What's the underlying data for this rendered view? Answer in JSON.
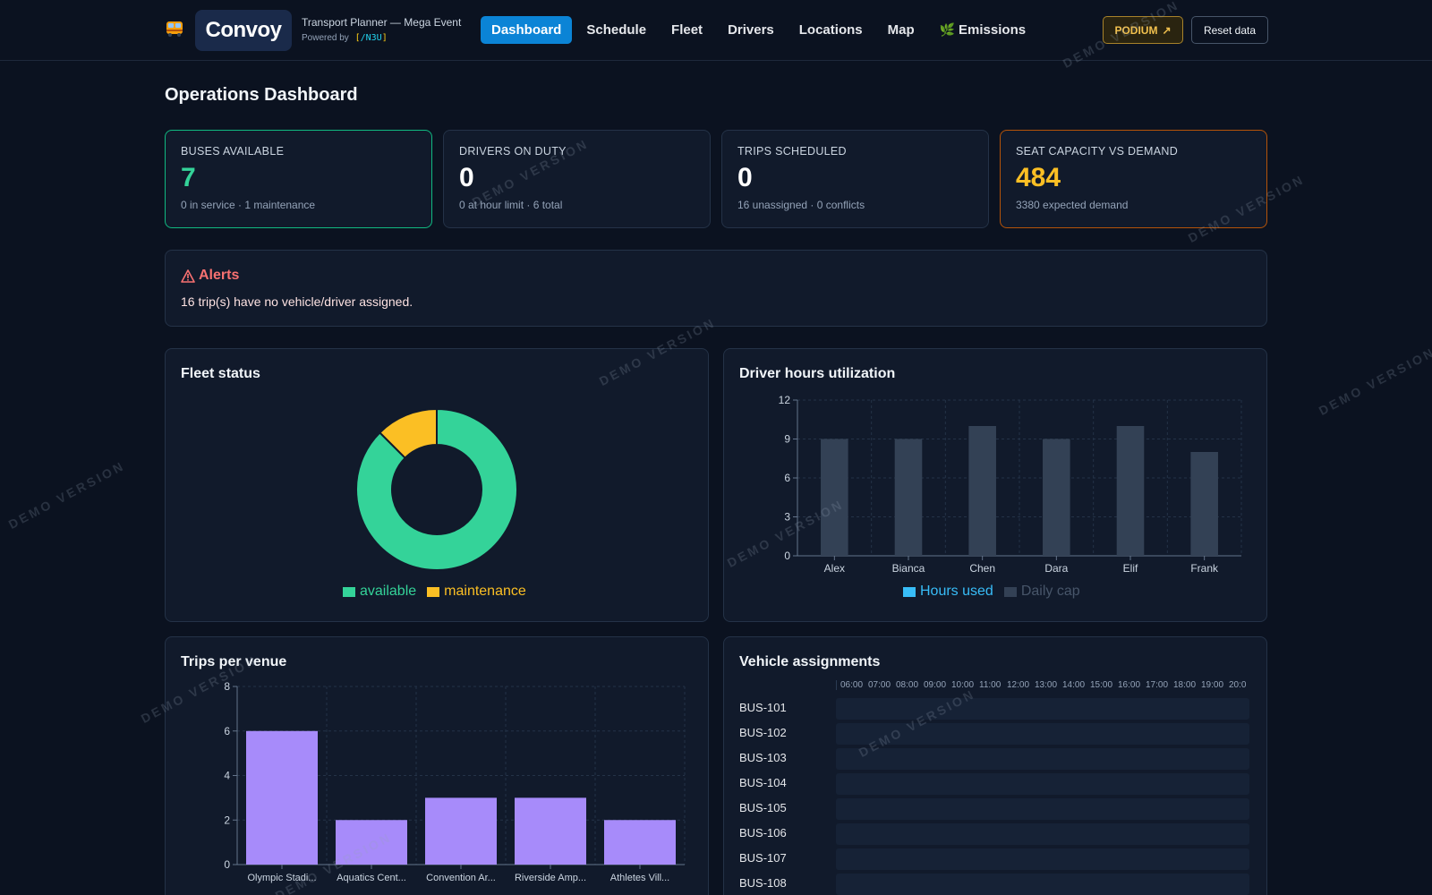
{
  "header": {
    "logo": "Convoy",
    "subtitle": "Transport Planner — Mega Event",
    "powered_by": "Powered by",
    "powered_brand": "/N3U",
    "nav": [
      {
        "label": "Dashboard",
        "active": true
      },
      {
        "label": "Schedule"
      },
      {
        "label": "Fleet"
      },
      {
        "label": "Drivers"
      },
      {
        "label": "Locations"
      },
      {
        "label": "Map"
      },
      {
        "label": "Emissions",
        "icon": "leaf-icon"
      }
    ],
    "podium_label": "PODIUM",
    "reset_label": "Reset data"
  },
  "page_title": "Operations Dashboard",
  "stats": [
    {
      "label": "BUSES AVAILABLE",
      "value": "7",
      "sub": "0 in service · 1 maintenance",
      "accent": "#34d399"
    },
    {
      "label": "DRIVERS ON DUTY",
      "value": "0",
      "sub": "0 at hour limit · 6 total"
    },
    {
      "label": "TRIPS SCHEDULED",
      "value": "0",
      "sub": "16 unassigned · 0 conflicts"
    },
    {
      "label": "SEAT CAPACITY VS DEMAND",
      "value": "484",
      "sub": "3380 expected demand",
      "accent": "#fbbf24"
    }
  ],
  "alerts": {
    "title": "Alerts",
    "message": "16 trip(s) have no vehicle/driver assigned."
  },
  "fleet_status": {
    "title": "Fleet status",
    "legend": [
      "available",
      "maintenance"
    ]
  },
  "driver_hours": {
    "title": "Driver hours utilization",
    "legend": [
      "Hours used",
      "Daily cap"
    ]
  },
  "trips_per_venue": {
    "title": "Trips per venue"
  },
  "vehicle_assignments": {
    "title": "Vehicle assignments",
    "hours": [
      "06:00",
      "07:00",
      "08:00",
      "09:00",
      "10:00",
      "11:00",
      "12:00",
      "13:00",
      "14:00",
      "15:00",
      "16:00",
      "17:00",
      "18:00",
      "19:00",
      "20:0"
    ],
    "vehicles": [
      "BUS-101",
      "BUS-102",
      "BUS-103",
      "BUS-104",
      "BUS-105",
      "BUS-106",
      "BUS-107",
      "BUS-108"
    ]
  },
  "watermark": "DEMO VERSION",
  "chart_data": [
    {
      "type": "pie",
      "title": "Fleet status",
      "categories": [
        "available",
        "maintenance"
      ],
      "values": [
        7,
        1
      ],
      "colors": [
        "#34d399",
        "#fbbf24"
      ]
    },
    {
      "type": "bar",
      "title": "Driver hours utilization",
      "categories": [
        "Alex",
        "Bianca",
        "Chen",
        "Dara",
        "Elif",
        "Frank"
      ],
      "series": [
        {
          "name": "Hours used",
          "values": [
            0,
            0,
            0,
            0,
            0,
            0
          ],
          "color": "#38bdf8"
        },
        {
          "name": "Daily cap",
          "values": [
            9,
            9,
            10,
            9,
            10,
            8
          ],
          "color": "#334155"
        }
      ],
      "ylim": [
        0,
        12
      ],
      "yticks": [
        0,
        3,
        6,
        9,
        12
      ],
      "grid": true
    },
    {
      "type": "bar",
      "title": "Trips per venue",
      "categories": [
        "Olympic Stadi...",
        "Aquatics Cent...",
        "Convention Ar...",
        "Riverside Amp...",
        "Athletes Vill..."
      ],
      "values": [
        6,
        2,
        3,
        3,
        2
      ],
      "color": "#a78bfa",
      "ylim": [
        0,
        8
      ],
      "yticks": [
        0,
        2,
        4,
        6,
        8
      ],
      "grid": true
    }
  ]
}
